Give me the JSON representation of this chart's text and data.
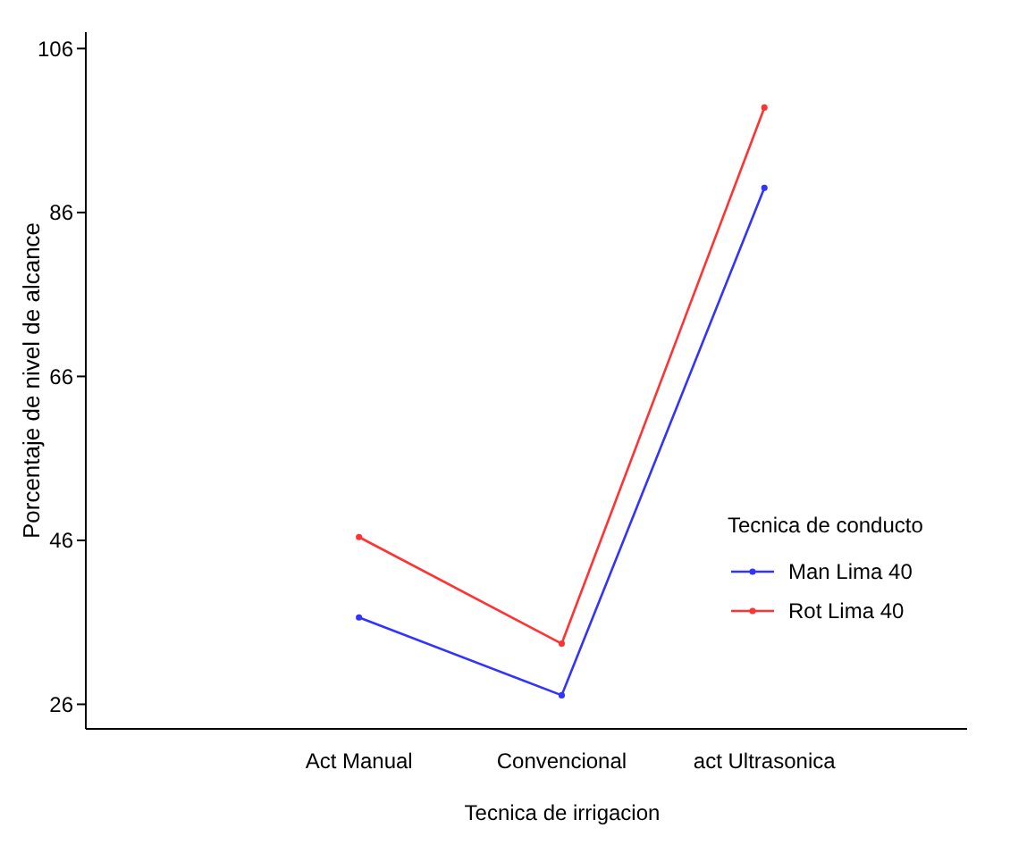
{
  "chart_data": {
    "type": "line",
    "xlabel": "Tecnica de irrigacion",
    "ylabel": "Porcentaje de nivel de alcance",
    "legend_title": "Tecnica de conducto",
    "categories": [
      "Act Manual",
      "Convencional",
      "act Ultrasonica"
    ],
    "series": [
      {
        "name": "Man Lima 40",
        "color": "#3333ff",
        "values": [
          36.6,
          27.1,
          89.0
        ]
      },
      {
        "name": "Rot Lima 40",
        "color": "#ff3333",
        "values": [
          46.4,
          33.4,
          98.8
        ]
      }
    ],
    "ylim": [
      23,
      108
    ],
    "yticks": [
      26,
      46,
      66,
      86,
      106
    ],
    "grid": false,
    "legend": "bottom right",
    "marker": "circle",
    "line_style": "solid"
  }
}
